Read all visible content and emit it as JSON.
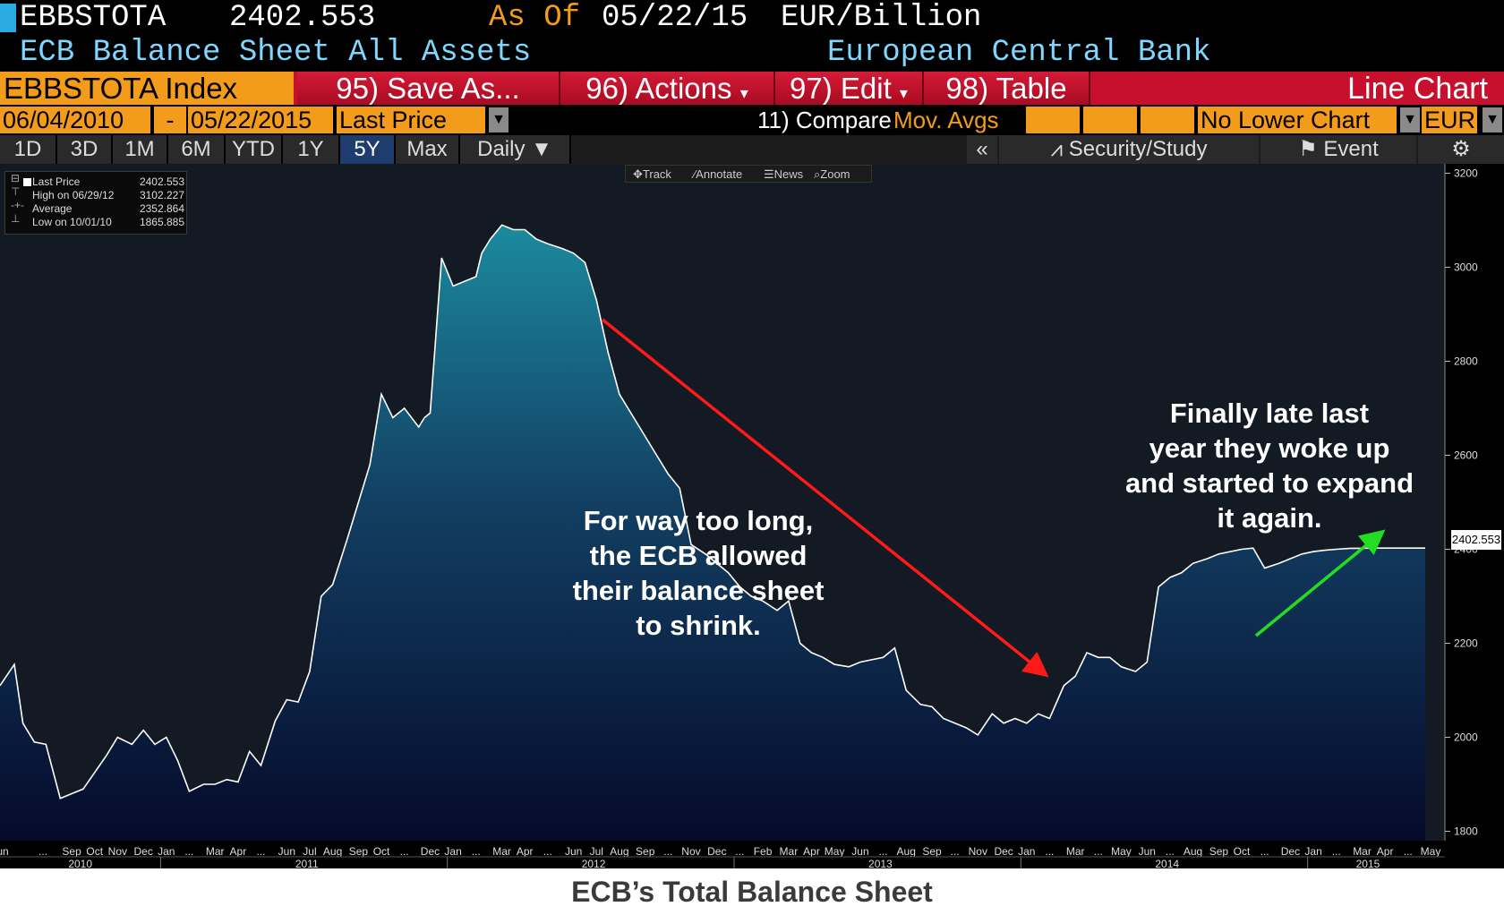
{
  "header": {
    "ticker": "EBBSTOTA",
    "last_value": "2402.553",
    "as_of_label": "As Of",
    "as_of_date": "05/22/15",
    "units": "EUR/Billion",
    "description": "ECB Balance Sheet All Assets",
    "source": "European Central Bank"
  },
  "menubar": {
    "index": "EBBSTOTA Index",
    "save": "95) Save As...",
    "actions": "96) Actions",
    "edit": "97) Edit",
    "table": "98) Table",
    "chart_type": "Line Chart"
  },
  "range": {
    "start": "06/04/2010",
    "dash": "-",
    "end": "05/22/2015",
    "field": "Last Price",
    "compare": "11) Compare",
    "mov_avgs": "Mov. Avgs",
    "lower_chart": "No Lower Chart",
    "currency": "EUR"
  },
  "periods": [
    "1D",
    "3D",
    "1M",
    "6M",
    "YTD",
    "1Y",
    "5Y",
    "Max"
  ],
  "active_period": "5Y",
  "frequency": "Daily",
  "tools": {
    "collapse": "«",
    "security_study": "Security/Study",
    "event": "Event",
    "settings_icon": "gear-icon"
  },
  "chart_toolbar": [
    "Track",
    "Annotate",
    "News",
    "Zoom"
  ],
  "legend": [
    {
      "label": "Last Price",
      "value": "2402.553"
    },
    {
      "label": "High on 06/29/12",
      "value": "3102.227"
    },
    {
      "label": "Average",
      "value": "2352.864"
    },
    {
      "label": "Low on 10/01/10",
      "value": "1865.885"
    }
  ],
  "annotations": {
    "shrink": [
      "For way too long,",
      "the ECB allowed",
      "their balance sheet",
      "to shrink."
    ],
    "expand": [
      "Finally late last",
      "year they woke up",
      "and started to expand",
      "it again."
    ]
  },
  "caption": "ECB’s Total Balance Sheet",
  "colors": {
    "area_top": "#1b8a9e",
    "area_bottom": "#050a2a",
    "down_arrow": "#ff1a1a",
    "up_arrow": "#22dd22",
    "orange": "#f39c1c"
  },
  "chart_data": {
    "type": "area",
    "title": "",
    "ylim": [
      1780,
      3220
    ],
    "yticks": [
      1800,
      2000,
      2200,
      2400,
      2600,
      2800,
      3000,
      3200
    ],
    "x_range": [
      2010.42,
      2015.39
    ],
    "last_price_label": "2402.553",
    "x": [
      2010.42,
      2010.47,
      2010.5,
      2010.54,
      2010.58,
      2010.63,
      2010.67,
      2010.71,
      2010.75,
      2010.79,
      2010.83,
      2010.88,
      2010.92,
      2010.96,
      2011.0,
      2011.04,
      2011.08,
      2011.13,
      2011.17,
      2011.21,
      2011.25,
      2011.29,
      2011.33,
      2011.38,
      2011.42,
      2011.46,
      2011.5,
      2011.54,
      2011.58,
      2011.63,
      2011.67,
      2011.71,
      2011.75,
      2011.79,
      2011.83,
      2011.88,
      2011.9,
      2011.92,
      2011.96,
      2011.98,
      2012.0,
      2012.04,
      2012.08,
      2012.1,
      2012.13,
      2012.17,
      2012.21,
      2012.25,
      2012.29,
      2012.33,
      2012.38,
      2012.42,
      2012.46,
      2012.5,
      2012.54,
      2012.58,
      2012.63,
      2012.67,
      2012.71,
      2012.75,
      2012.79,
      2012.83,
      2012.88,
      2012.92,
      2012.96,
      2013.0,
      2013.04,
      2013.08,
      2013.13,
      2013.17,
      2013.21,
      2013.25,
      2013.29,
      2013.33,
      2013.38,
      2013.42,
      2013.46,
      2013.5,
      2013.54,
      2013.58,
      2013.63,
      2013.67,
      2013.71,
      2013.75,
      2013.79,
      2013.83,
      2013.88,
      2013.92,
      2013.96,
      2014.0,
      2014.04,
      2014.08,
      2014.13,
      2014.17,
      2014.21,
      2014.25,
      2014.29,
      2014.33,
      2014.38,
      2014.42,
      2014.46,
      2014.5,
      2014.54,
      2014.58,
      2014.63,
      2014.67,
      2014.71,
      2014.75,
      2014.79,
      2014.83,
      2014.88,
      2014.92,
      2014.96,
      2015.0,
      2015.04,
      2015.08,
      2015.13,
      2015.17,
      2015.21,
      2015.25,
      2015.29,
      2015.33,
      2015.39
    ],
    "values": [
      2110,
      2155,
      2030,
      1990,
      1985,
      1870,
      1880,
      1890,
      1925,
      1960,
      2000,
      1985,
      2015,
      1985,
      2000,
      1950,
      1885,
      1900,
      1900,
      1910,
      1905,
      1970,
      1940,
      2035,
      2080,
      2075,
      2140,
      2300,
      2325,
      2420,
      2500,
      2580,
      2730,
      2680,
      2700,
      2660,
      2680,
      2690,
      3020,
      2990,
      2960,
      2970,
      2980,
      3030,
      3060,
      3090,
      3080,
      3080,
      3060,
      3050,
      3040,
      3030,
      3010,
      2930,
      2820,
      2730,
      2680,
      2640,
      2600,
      2560,
      2530,
      2410,
      2390,
      2370,
      2350,
      2320,
      2300,
      2290,
      2270,
      2290,
      2200,
      2180,
      2170,
      2155,
      2150,
      2160,
      2165,
      2170,
      2190,
      2100,
      2070,
      2065,
      2040,
      2030,
      2020,
      2005,
      2050,
      2030,
      2040,
      2030,
      2050,
      2040,
      2110,
      2130,
      2180,
      2170,
      2170,
      2150,
      2140,
      2160,
      2320,
      2340,
      2350,
      2370,
      2380,
      2390,
      2395,
      2400,
      2402.553,
      2360,
      2370,
      2380,
      2390,
      2395,
      2398,
      2400,
      2402,
      2402,
      2402.553,
      2402.553,
      2402.553,
      2402.553,
      2402.553
    ],
    "x_month_labels": [
      {
        "x": 2010.42,
        "t": "Jun"
      },
      {
        "x": 2010.57,
        "t": "..."
      },
      {
        "x": 2010.67,
        "t": "Sep"
      },
      {
        "x": 2010.75,
        "t": "Oct"
      },
      {
        "x": 2010.83,
        "t": "Nov"
      },
      {
        "x": 2010.92,
        "t": "Dec"
      },
      {
        "x": 2011.0,
        "t": "Jan"
      },
      {
        "x": 2011.08,
        "t": "..."
      },
      {
        "x": 2011.17,
        "t": "Mar"
      },
      {
        "x": 2011.25,
        "t": "Apr"
      },
      {
        "x": 2011.33,
        "t": "..."
      },
      {
        "x": 2011.42,
        "t": "Jun"
      },
      {
        "x": 2011.5,
        "t": "Jul"
      },
      {
        "x": 2011.58,
        "t": "Aug"
      },
      {
        "x": 2011.67,
        "t": "Sep"
      },
      {
        "x": 2011.75,
        "t": "Oct"
      },
      {
        "x": 2011.83,
        "t": "..."
      },
      {
        "x": 2011.92,
        "t": "Dec"
      },
      {
        "x": 2012.0,
        "t": "Jan"
      },
      {
        "x": 2012.08,
        "t": "..."
      },
      {
        "x": 2012.17,
        "t": "Mar"
      },
      {
        "x": 2012.25,
        "t": "Apr"
      },
      {
        "x": 2012.33,
        "t": "..."
      },
      {
        "x": 2012.42,
        "t": "Jun"
      },
      {
        "x": 2012.5,
        "t": "Jul"
      },
      {
        "x": 2012.58,
        "t": "Aug"
      },
      {
        "x": 2012.67,
        "t": "Sep"
      },
      {
        "x": 2012.75,
        "t": "..."
      },
      {
        "x": 2012.83,
        "t": "Nov"
      },
      {
        "x": 2012.92,
        "t": "Dec"
      },
      {
        "x": 2013.0,
        "t": "..."
      },
      {
        "x": 2013.08,
        "t": "Feb"
      },
      {
        "x": 2013.17,
        "t": "Mar"
      },
      {
        "x": 2013.25,
        "t": "Apr"
      },
      {
        "x": 2013.33,
        "t": "May"
      },
      {
        "x": 2013.42,
        "t": "Jun"
      },
      {
        "x": 2013.5,
        "t": "..."
      },
      {
        "x": 2013.58,
        "t": "Aug"
      },
      {
        "x": 2013.67,
        "t": "Sep"
      },
      {
        "x": 2013.75,
        "t": "..."
      },
      {
        "x": 2013.83,
        "t": "Nov"
      },
      {
        "x": 2013.92,
        "t": "Dec"
      },
      {
        "x": 2014.0,
        "t": "Jan"
      },
      {
        "x": 2014.08,
        "t": "..."
      },
      {
        "x": 2014.17,
        "t": "Mar"
      },
      {
        "x": 2014.25,
        "t": "..."
      },
      {
        "x": 2014.33,
        "t": "May"
      },
      {
        "x": 2014.42,
        "t": "Jun"
      },
      {
        "x": 2014.5,
        "t": "..."
      },
      {
        "x": 2014.58,
        "t": "Aug"
      },
      {
        "x": 2014.67,
        "t": "Sep"
      },
      {
        "x": 2014.75,
        "t": "Oct"
      },
      {
        "x": 2014.83,
        "t": "..."
      },
      {
        "x": 2014.92,
        "t": "Dec"
      },
      {
        "x": 2015.0,
        "t": "Jan"
      },
      {
        "x": 2015.08,
        "t": "..."
      },
      {
        "x": 2015.17,
        "t": "Mar"
      },
      {
        "x": 2015.25,
        "t": "Apr"
      },
      {
        "x": 2015.33,
        "t": "..."
      },
      {
        "x": 2015.39,
        "t": "May"
      }
    ],
    "x_year_labels": [
      {
        "x": 2010.7,
        "t": "2010"
      },
      {
        "x": 2011.49,
        "t": "2011"
      },
      {
        "x": 2012.49,
        "t": "2012"
      },
      {
        "x": 2013.49,
        "t": "2013"
      },
      {
        "x": 2014.49,
        "t": "2014"
      },
      {
        "x": 2015.19,
        "t": "2015"
      }
    ],
    "year_dividers": [
      2010.98,
      2011.98,
      2012.98,
      2013.98,
      2014.98
    ]
  }
}
